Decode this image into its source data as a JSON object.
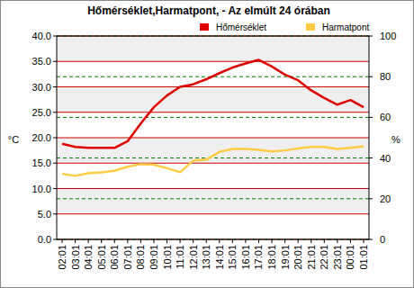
{
  "chart_data": {
    "type": "line",
    "title": "Hőmérséklet,Harmatpont, - Az elmúlt 24 órában",
    "y_label": "°C",
    "y2_label": "%",
    "categories": [
      "02:01",
      "03:01",
      "04:01",
      "05:01",
      "06:01",
      "07:01",
      "08:01",
      "09:01",
      "10:01",
      "11:01",
      "12:01",
      "13:01",
      "14:01",
      "15:01",
      "16:01",
      "17:01",
      "18:01",
      "19:01",
      "20:01",
      "21:01",
      "22:01",
      "23:01",
      "00:01",
      "01:01"
    ],
    "series": [
      {
        "name": "Hőmérséklet",
        "color": "#e00000",
        "values": [
          18.8,
          18.2,
          18.0,
          18.0,
          18.0,
          19.3,
          22.8,
          26.0,
          28.3,
          30.0,
          30.5,
          31.5,
          32.7,
          33.8,
          34.6,
          35.3,
          34.0,
          32.4,
          31.3,
          29.3,
          27.8,
          26.5,
          27.4,
          26.0
        ]
      },
      {
        "name": "Harmatpont",
        "color": "#ffcc44",
        "values": [
          12.9,
          12.5,
          13.0,
          13.2,
          13.5,
          14.3,
          14.8,
          14.7,
          14.0,
          13.2,
          15.5,
          15.7,
          17.2,
          17.8,
          17.8,
          17.6,
          17.3,
          17.5,
          17.9,
          18.2,
          18.2,
          17.8,
          18.0,
          18.3
        ]
      }
    ],
    "ylim": [
      0,
      40
    ],
    "yticks": [
      {
        "value": 0,
        "label": "0.0"
      },
      {
        "value": 5,
        "label": "5.0"
      },
      {
        "value": 10,
        "label": "10.0"
      },
      {
        "value": 15,
        "label": "15.0"
      },
      {
        "value": 20,
        "label": "20.0"
      },
      {
        "value": 25,
        "label": "25.0"
      },
      {
        "value": 30,
        "label": "30.0"
      },
      {
        "value": 35,
        "label": "35.0"
      },
      {
        "value": 40,
        "label": "40.0"
      }
    ],
    "y2lim": [
      0,
      100
    ],
    "y2ticks": [
      0,
      20,
      40,
      60,
      80,
      100
    ],
    "grid": true,
    "legend": "top-right"
  }
}
